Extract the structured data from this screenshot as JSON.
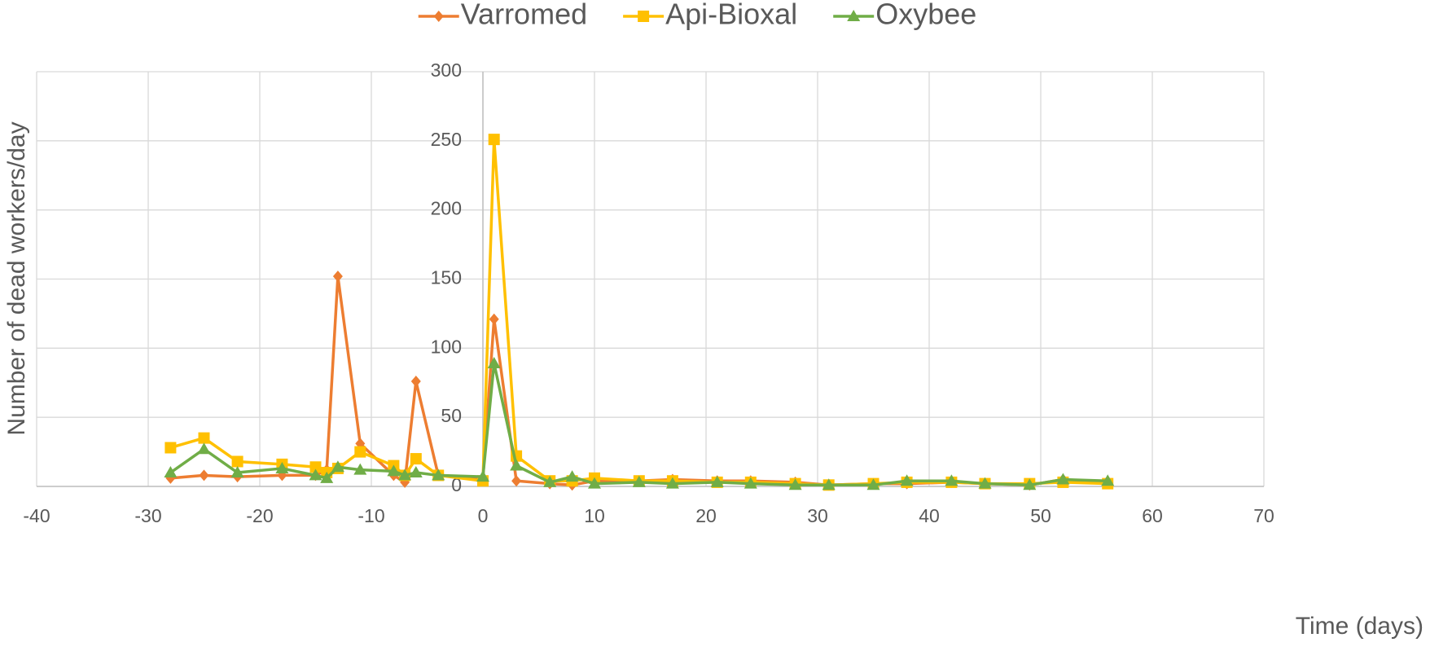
{
  "chart_data": {
    "type": "line",
    "x": [
      -28,
      -25,
      -22,
      -18,
      -15,
      -14,
      -13,
      -11,
      -8,
      -7,
      -6,
      -4,
      0,
      1,
      3,
      6,
      8,
      10,
      14,
      17,
      21,
      24,
      28,
      31,
      35,
      38,
      42,
      45,
      49,
      52,
      56
    ],
    "series": [
      {
        "name": "Varromed",
        "color": "#ed7d31",
        "marker": "diamond",
        "values": [
          6,
          8,
          7,
          8,
          8,
          12,
          152,
          31,
          8,
          3,
          76,
          8,
          6,
          121,
          4,
          2,
          1,
          4,
          4,
          5,
          4,
          4,
          3,
          1,
          2,
          2,
          3,
          2,
          1,
          5,
          3
        ]
      },
      {
        "name": "Api-Bioxal",
        "color": "#ffc000",
        "marker": "square",
        "values": [
          28,
          35,
          18,
          16,
          14,
          10,
          13,
          25,
          15,
          8,
          20,
          8,
          4,
          251,
          22,
          4,
          4,
          6,
          4,
          4,
          3,
          3,
          2,
          1,
          2,
          3,
          3,
          2,
          2,
          3,
          2
        ]
      },
      {
        "name": "Oxybee",
        "color": "#70ad47",
        "marker": "triangle",
        "values": [
          10,
          27,
          10,
          13,
          8,
          6,
          14,
          12,
          11,
          8,
          10,
          8,
          7,
          89,
          15,
          3,
          7,
          2,
          3,
          2,
          3,
          2,
          1,
          1,
          1,
          4,
          4,
          2,
          1,
          5,
          4
        ]
      }
    ],
    "xlabel": "Time (days)",
    "ylabel": "Number of dead workers/day",
    "xlim": [
      -40,
      70
    ],
    "xticks": [
      -40,
      -30,
      -20,
      -10,
      0,
      10,
      20,
      30,
      40,
      50,
      60,
      70
    ],
    "ylim": [
      0,
      300
    ],
    "yticks": [
      0,
      50,
      100,
      150,
      200,
      250,
      300
    ],
    "grid": true,
    "legend": "top"
  }
}
